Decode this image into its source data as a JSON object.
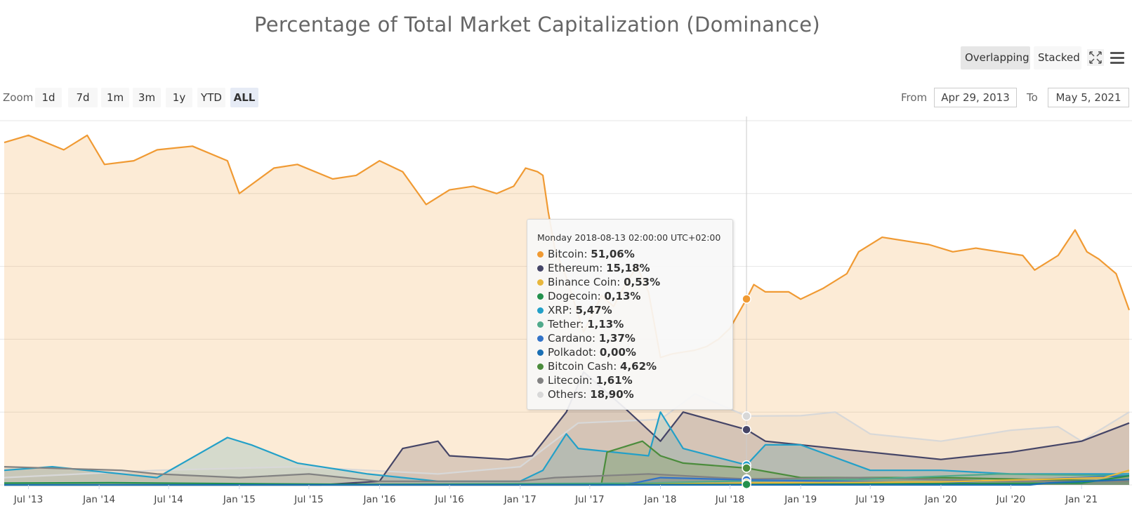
{
  "title": "Percentage of Total Market Capitalization (Dominance)",
  "toolbar": {
    "overlapping_label": "Overlapping",
    "stacked_label": "Stacked",
    "fullscreen_icon": "fullscreen-icon",
    "menu_icon": "hamburger-menu-icon"
  },
  "zoom": {
    "label": "Zoom",
    "buttons": [
      "1d",
      "7d",
      "1m",
      "3m",
      "1y",
      "YTD",
      "ALL"
    ],
    "active": "ALL"
  },
  "range": {
    "from_label": "From",
    "from_value": "Apr 29, 2013",
    "to_label": "To",
    "to_value": "May 5, 2021"
  },
  "tooltip": {
    "header": "Monday 2018-08-13 02:00:00 UTC+02:00",
    "rows": [
      {
        "name": "Bitcoin",
        "value": "51,06%",
        "color": "#f09a33"
      },
      {
        "name": "Ethereum",
        "value": "15,18%",
        "color": "#454567"
      },
      {
        "name": "Binance Coin",
        "value": "0,53%",
        "color": "#e8b73c"
      },
      {
        "name": "Dogecoin",
        "value": "0,13%",
        "color": "#23914d"
      },
      {
        "name": "XRP",
        "value": "5,47%",
        "color": "#23a0c8"
      },
      {
        "name": "Tether",
        "value": "1,13%",
        "color": "#50aa8c"
      },
      {
        "name": "Cardano",
        "value": "1,37%",
        "color": "#3273c8"
      },
      {
        "name": "Polkadot",
        "value": "0,00%",
        "color": "#1a6fb4"
      },
      {
        "name": "Bitcoin Cash",
        "value": "4,62%",
        "color": "#4b8c3c"
      },
      {
        "name": "Litecoin",
        "value": "1,61%",
        "color": "#828282"
      },
      {
        "name": "Others",
        "value": "18,90%",
        "color": "#d8d8d8"
      }
    ]
  },
  "chart_data": {
    "type": "area",
    "x_start": "2013-04-29",
    "x_end": "2021-05-05",
    "ylim": [
      0,
      100
    ],
    "grid": true,
    "x_tick_labels": [
      "Jul '13",
      "Jan '14",
      "Jul '14",
      "Jan '15",
      "Jul '15",
      "Jan '16",
      "Jul '16",
      "Jan '17",
      "Jul '17",
      "Jan '18",
      "Jul '18",
      "Jan '19",
      "Jul '19",
      "Jan '20",
      "Jul '20",
      "Jan '21"
    ],
    "x_tick_dates": [
      "2013-07-01",
      "2014-01-01",
      "2014-07-01",
      "2015-01-01",
      "2015-07-01",
      "2016-01-01",
      "2016-07-01",
      "2017-01-01",
      "2017-07-01",
      "2018-01-01",
      "2018-07-01",
      "2019-01-01",
      "2019-07-01",
      "2020-01-01",
      "2020-07-01",
      "2021-01-01"
    ],
    "crosshair_date": "2018-08-13",
    "series": [
      {
        "name": "Others",
        "color": "#d8d8d8",
        "points": [
          [
            "2013-04-29",
            2
          ],
          [
            "2014-06-01",
            4
          ],
          [
            "2015-06-01",
            5
          ],
          [
            "2016-06-01",
            3
          ],
          [
            "2017-01-01",
            5
          ],
          [
            "2017-06-01",
            17
          ],
          [
            "2018-01-01",
            18
          ],
          [
            "2018-04-01",
            25
          ],
          [
            "2018-08-13",
            18.9
          ],
          [
            "2019-01-01",
            19
          ],
          [
            "2019-04-01",
            20
          ],
          [
            "2019-07-01",
            14
          ],
          [
            "2020-01-01",
            12
          ],
          [
            "2020-07-01",
            15
          ],
          [
            "2020-11-01",
            16
          ],
          [
            "2021-01-01",
            12
          ],
          [
            "2021-05-05",
            20
          ]
        ]
      },
      {
        "name": "Ethereum",
        "color": "#454567",
        "points": [
          [
            "2013-04-29",
            0
          ],
          [
            "2015-08-01",
            0
          ],
          [
            "2016-01-01",
            1
          ],
          [
            "2016-03-01",
            10
          ],
          [
            "2016-06-01",
            12
          ],
          [
            "2016-07-01",
            8
          ],
          [
            "2016-12-01",
            7
          ],
          [
            "2017-02-01",
            8
          ],
          [
            "2017-05-01",
            20
          ],
          [
            "2017-06-15",
            31
          ],
          [
            "2017-10-01",
            21
          ],
          [
            "2018-01-01",
            12
          ],
          [
            "2018-03-01",
            20
          ],
          [
            "2018-08-13",
            15.18
          ],
          [
            "2018-10-01",
            12
          ],
          [
            "2019-01-01",
            11
          ],
          [
            "2019-07-01",
            9
          ],
          [
            "2020-01-01",
            7
          ],
          [
            "2020-07-01",
            9
          ],
          [
            "2021-01-01",
            12
          ],
          [
            "2021-05-05",
            17
          ]
        ]
      },
      {
        "name": "XRP",
        "color": "#23a0c8",
        "points": [
          [
            "2013-04-29",
            4
          ],
          [
            "2013-09-01",
            5
          ],
          [
            "2014-06-01",
            2
          ],
          [
            "2014-12-01",
            13
          ],
          [
            "2015-02-01",
            11
          ],
          [
            "2015-06-01",
            6
          ],
          [
            "2015-12-01",
            3
          ],
          [
            "2016-06-01",
            1
          ],
          [
            "2017-01-01",
            1
          ],
          [
            "2017-03-01",
            4
          ],
          [
            "2017-05-01",
            14
          ],
          [
            "2017-06-01",
            10
          ],
          [
            "2017-12-01",
            8
          ],
          [
            "2018-01-01",
            20
          ],
          [
            "2018-03-01",
            10
          ],
          [
            "2018-08-13",
            5.47
          ],
          [
            "2018-10-01",
            11
          ],
          [
            "2019-01-01",
            11
          ],
          [
            "2019-07-01",
            4
          ],
          [
            "2020-01-01",
            4
          ],
          [
            "2020-07-01",
            3
          ],
          [
            "2021-05-05",
            3
          ]
        ]
      },
      {
        "name": "Bitcoin Cash",
        "color": "#4b8c3c",
        "points": [
          [
            "2013-04-29",
            0
          ],
          [
            "2017-07-31",
            0
          ],
          [
            "2017-08-15",
            9
          ],
          [
            "2017-11-15",
            12
          ],
          [
            "2018-01-01",
            8
          ],
          [
            "2018-03-01",
            6
          ],
          [
            "2018-08-13",
            4.62
          ],
          [
            "2019-01-01",
            2
          ],
          [
            "2020-01-01",
            2
          ],
          [
            "2021-05-05",
            1
          ]
        ]
      },
      {
        "name": "Litecoin",
        "color": "#828282",
        "points": [
          [
            "2013-04-29",
            5
          ],
          [
            "2014-03-01",
            4
          ],
          [
            "2014-06-01",
            3
          ],
          [
            "2015-01-01",
            2
          ],
          [
            "2015-07-01",
            3
          ],
          [
            "2016-01-01",
            1
          ],
          [
            "2017-01-01",
            1
          ],
          [
            "2017-04-01",
            2
          ],
          [
            "2017-12-01",
            3
          ],
          [
            "2018-08-13",
            1.61
          ],
          [
            "2019-06-01",
            2
          ],
          [
            "2020-06-01",
            1
          ],
          [
            "2021-05-05",
            1
          ]
        ]
      },
      {
        "name": "Tether",
        "color": "#50aa8c",
        "points": [
          [
            "2013-04-29",
            0
          ],
          [
            "2015-01-01",
            0
          ],
          [
            "2017-12-01",
            0.5
          ],
          [
            "2018-08-13",
            1.13
          ],
          [
            "2019-06-01",
            1.5
          ],
          [
            "2020-06-01",
            3
          ],
          [
            "2021-05-05",
            2.5
          ]
        ]
      },
      {
        "name": "Cardano",
        "color": "#3273c8",
        "points": [
          [
            "2013-04-29",
            0
          ],
          [
            "2017-10-01",
            0
          ],
          [
            "2018-01-01",
            2
          ],
          [
            "2018-08-13",
            1.37
          ],
          [
            "2020-01-01",
            0.6
          ],
          [
            "2021-05-05",
            2.5
          ]
        ]
      },
      {
        "name": "Binance Coin",
        "color": "#e8b73c",
        "points": [
          [
            "2013-04-29",
            0
          ],
          [
            "2017-07-01",
            0
          ],
          [
            "2018-08-13",
            0.53
          ],
          [
            "2020-01-01",
            0.8
          ],
          [
            "2021-03-01",
            2
          ],
          [
            "2021-05-05",
            4
          ]
        ]
      },
      {
        "name": "Dogecoin",
        "color": "#23914d",
        "points": [
          [
            "2013-04-29",
            0.5
          ],
          [
            "2014-02-01",
            0.6
          ],
          [
            "2016-01-01",
            0.1
          ],
          [
            "2018-08-13",
            0.13
          ],
          [
            "2021-01-01",
            0.5
          ],
          [
            "2021-05-05",
            2.5
          ]
        ]
      },
      {
        "name": "Polkadot",
        "color": "#1a6fb4",
        "points": [
          [
            "2013-04-29",
            0
          ],
          [
            "2020-08-20",
            0
          ],
          [
            "2020-10-01",
            0.5
          ],
          [
            "2021-05-05",
            1.5
          ]
        ]
      },
      {
        "name": "Bitcoin",
        "color": "#f09a33",
        "points": [
          [
            "2013-04-29",
            94
          ],
          [
            "2013-07-01",
            96
          ],
          [
            "2013-10-01",
            92
          ],
          [
            "2013-12-01",
            96
          ],
          [
            "2014-01-15",
            88
          ],
          [
            "2014-04-01",
            89
          ],
          [
            "2014-06-01",
            92
          ],
          [
            "2014-09-01",
            93
          ],
          [
            "2014-12-01",
            89
          ],
          [
            "2015-01-01",
            80
          ],
          [
            "2015-04-01",
            87
          ],
          [
            "2015-06-01",
            88
          ],
          [
            "2015-09-01",
            84
          ],
          [
            "2015-11-01",
            85
          ],
          [
            "2016-01-01",
            89
          ],
          [
            "2016-03-01",
            86
          ],
          [
            "2016-05-01",
            77
          ],
          [
            "2016-07-01",
            81
          ],
          [
            "2016-09-01",
            82
          ],
          [
            "2016-11-01",
            80
          ],
          [
            "2016-12-15",
            82
          ],
          [
            "2017-01-15",
            87
          ],
          [
            "2017-02-15",
            86
          ],
          [
            "2017-03-01",
            85
          ],
          [
            "2017-03-15",
            75
          ],
          [
            "2017-04-01",
            65
          ],
          [
            "2017-05-01",
            57
          ],
          [
            "2017-06-15",
            42
          ],
          [
            "2017-08-01",
            52
          ],
          [
            "2017-09-01",
            49
          ],
          [
            "2017-10-01",
            55
          ],
          [
            "2017-11-01",
            60
          ],
          [
            "2017-12-01",
            53
          ],
          [
            "2018-01-01",
            35
          ],
          [
            "2018-02-01",
            36
          ],
          [
            "2018-04-01",
            37
          ],
          [
            "2018-05-01",
            38
          ],
          [
            "2018-06-01",
            40
          ],
          [
            "2018-07-01",
            43
          ],
          [
            "2018-08-13",
            51.06
          ],
          [
            "2018-09-01",
            55
          ],
          [
            "2018-10-01",
            53
          ],
          [
            "2018-12-01",
            53
          ],
          [
            "2019-01-01",
            51
          ],
          [
            "2019-03-01",
            54
          ],
          [
            "2019-05-01",
            58
          ],
          [
            "2019-06-01",
            64
          ],
          [
            "2019-08-01",
            68
          ],
          [
            "2019-10-01",
            67
          ],
          [
            "2019-12-01",
            66
          ],
          [
            "2020-02-01",
            64
          ],
          [
            "2020-04-01",
            65
          ],
          [
            "2020-06-01",
            64
          ],
          [
            "2020-08-01",
            63
          ],
          [
            "2020-09-01",
            59
          ],
          [
            "2020-11-01",
            63
          ],
          [
            "2020-12-15",
            70
          ],
          [
            "2021-01-15",
            64
          ],
          [
            "2021-02-15",
            62
          ],
          [
            "2021-04-01",
            58
          ],
          [
            "2021-05-05",
            48
          ]
        ]
      }
    ]
  }
}
